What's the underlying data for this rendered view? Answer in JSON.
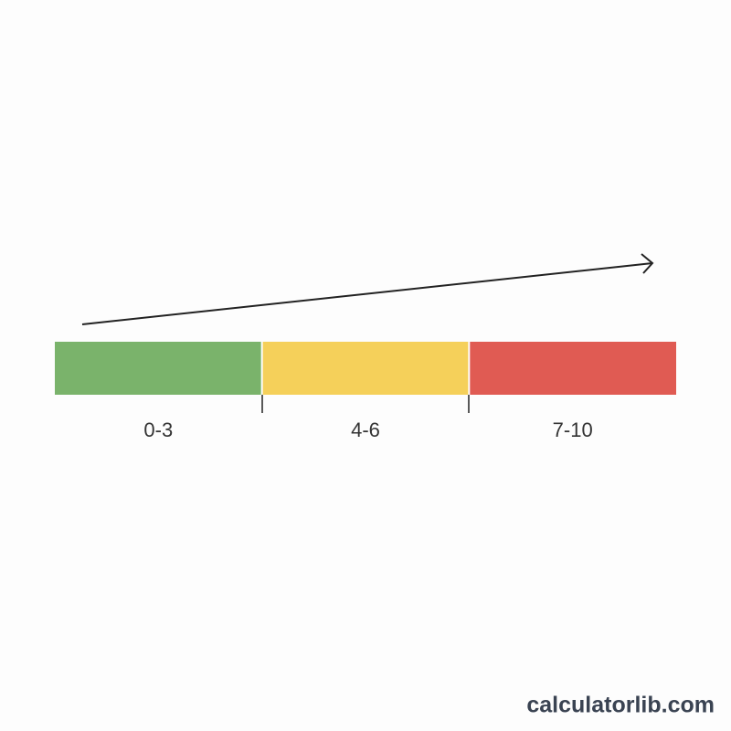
{
  "segments": [
    {
      "label": "0-3",
      "color": "#7ab36b"
    },
    {
      "label": "4-6",
      "color": "#f5d05a"
    },
    {
      "label": "7-10",
      "color": "#e05b53"
    }
  ],
  "watermark": "calculatorlib.com"
}
